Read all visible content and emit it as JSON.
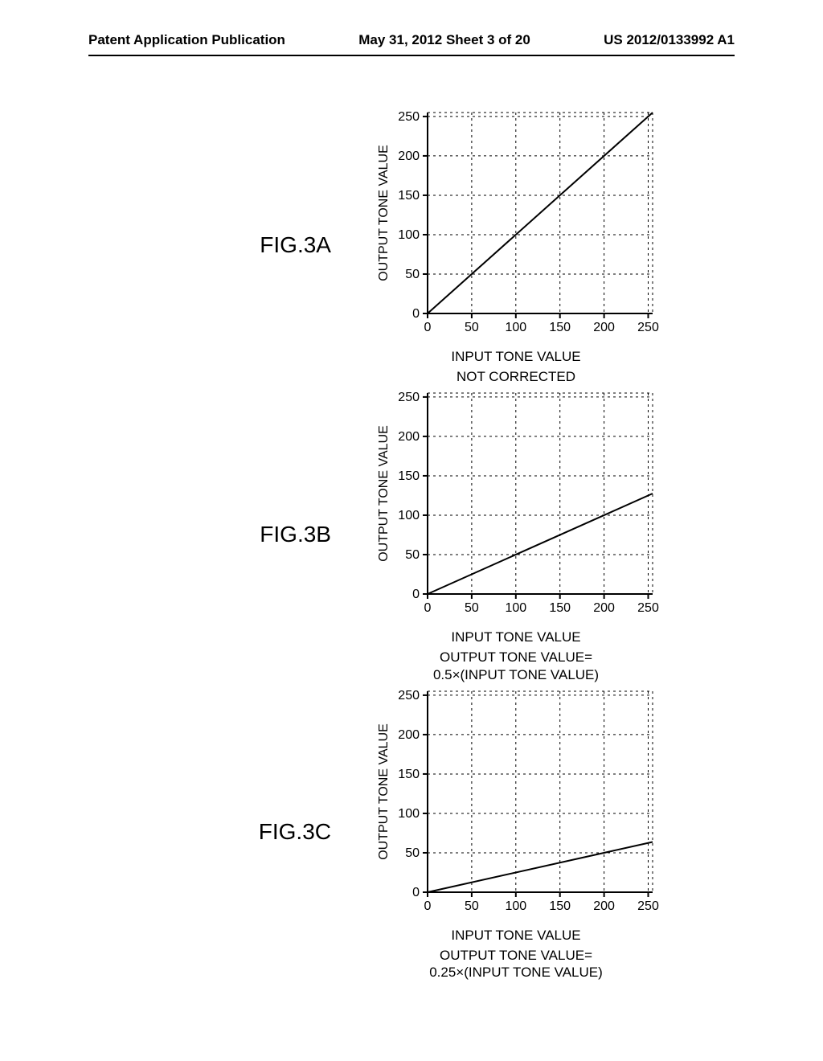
{
  "header": {
    "left": "Patent Application Publication",
    "center": "May 31, 2012  Sheet 3 of 20",
    "right": "US 2012/0133992 A1"
  },
  "charts": [
    {
      "label": "FIG.3A",
      "type": "line",
      "xlabel": "INPUT TONE VALUE",
      "ylabel": "OUTPUT TONE VALUE",
      "caption_top": "",
      "caption_bottom": "NOT CORRECTED",
      "slope": 1.0,
      "xlim": [
        0,
        255
      ],
      "ylim": [
        0,
        255
      ],
      "xticks": [
        0,
        50,
        100,
        150,
        200,
        250
      ],
      "yticks": [
        0,
        50,
        100,
        150,
        200,
        250
      ],
      "line_color": "#000000",
      "grid_color": "#000000",
      "axis_color": "#000000",
      "background": "#ffffff",
      "line_width": 2,
      "grid_dash": "3,4",
      "axis_width": 2
    },
    {
      "label": "FIG.3B",
      "type": "line",
      "xlabel": "INPUT TONE VALUE",
      "ylabel": "OUTPUT TONE VALUE",
      "caption_top": "",
      "caption_bottom": "OUTPUT TONE VALUE=\n0.5×(INPUT TONE VALUE)",
      "slope": 0.5,
      "xlim": [
        0,
        255
      ],
      "ylim": [
        0,
        255
      ],
      "xticks": [
        0,
        50,
        100,
        150,
        200,
        250
      ],
      "yticks": [
        0,
        50,
        100,
        150,
        200,
        250
      ],
      "line_color": "#000000",
      "grid_color": "#000000",
      "axis_color": "#000000",
      "background": "#ffffff",
      "line_width": 2,
      "grid_dash": "3,4",
      "axis_width": 2
    },
    {
      "label": "FIG.3C",
      "type": "line",
      "xlabel": "INPUT TONE VALUE",
      "ylabel": "OUTPUT TONE VALUE",
      "caption_top": "",
      "caption_bottom": "OUTPUT TONE VALUE=\n0.25×(INPUT TONE VALUE)",
      "slope": 0.25,
      "xlim": [
        0,
        255
      ],
      "ylim": [
        0,
        255
      ],
      "xticks": [
        0,
        50,
        100,
        150,
        200,
        250
      ],
      "yticks": [
        0,
        50,
        100,
        150,
        200,
        250
      ],
      "line_color": "#000000",
      "grid_color": "#000000",
      "axis_color": "#000000",
      "background": "#ffffff",
      "line_width": 2,
      "grid_dash": "3,4",
      "axis_width": 2
    }
  ]
}
